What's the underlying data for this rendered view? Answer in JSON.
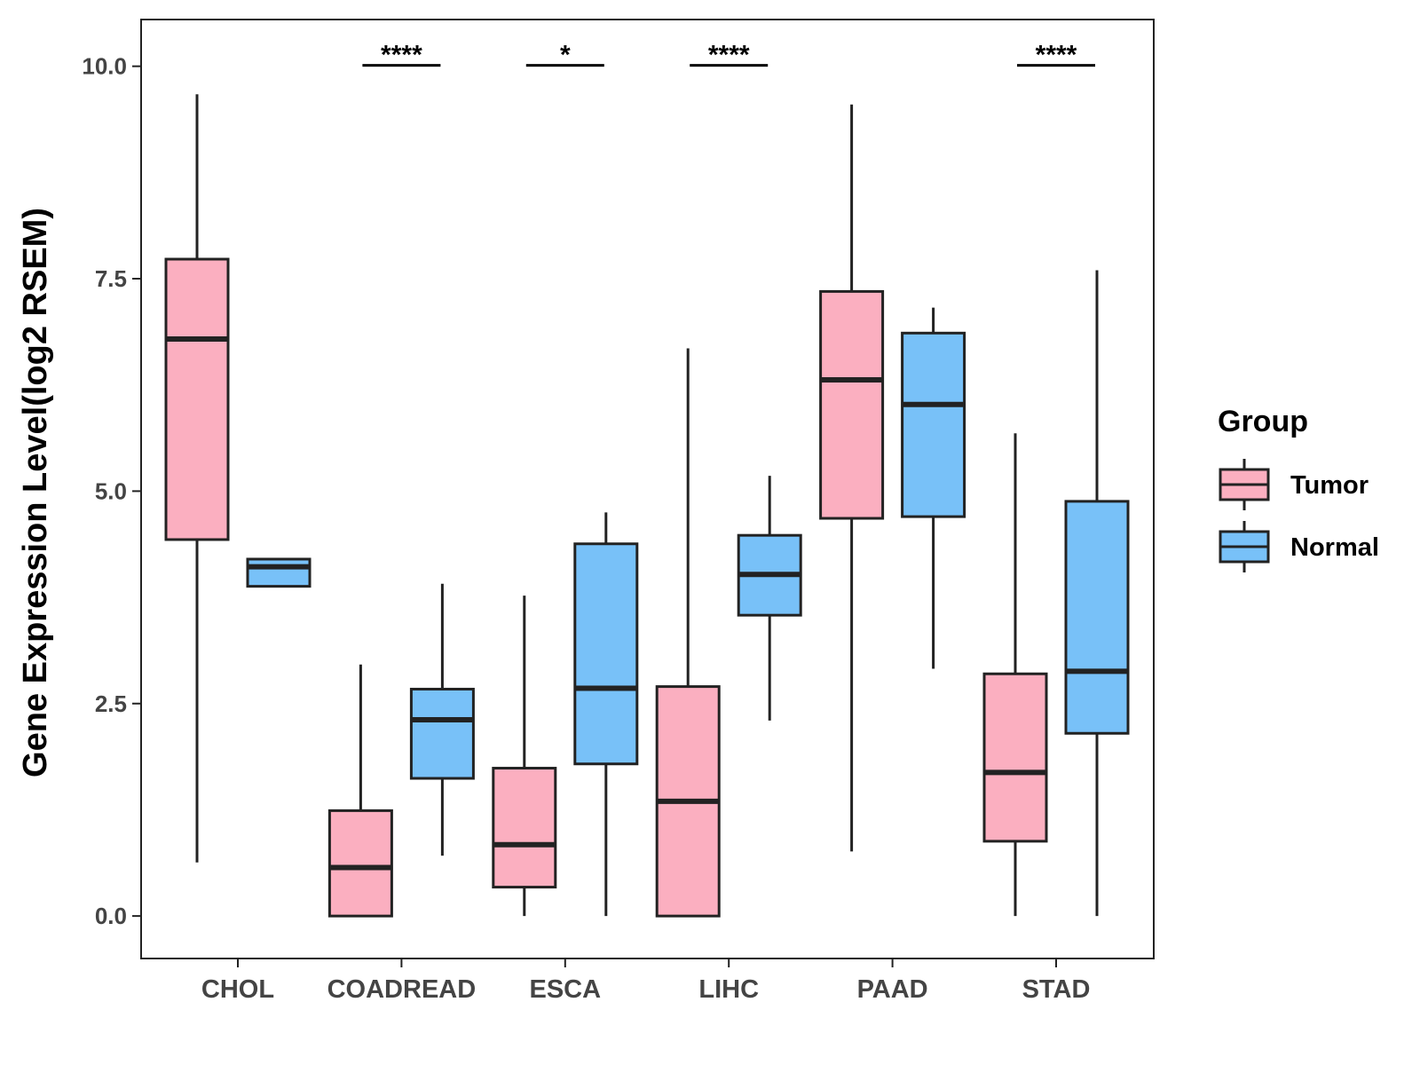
{
  "chart_data": {
    "type": "boxplot",
    "ylabel": "Gene Expression Level(log2 RSEM)",
    "xlabel": "",
    "ylim": [
      -0.5,
      10.55
    ],
    "yticks": [
      0.0,
      2.5,
      5.0,
      7.5,
      10.0
    ],
    "ytick_labels": [
      "0.0",
      "2.5",
      "5.0",
      "7.5",
      "10.0"
    ],
    "categories": [
      "CHOL",
      "COADREAD",
      "ESCA",
      "LIHC",
      "PAAD",
      "STAD"
    ],
    "legend": {
      "title": "Group",
      "entries": [
        {
          "name": "Tumor",
          "color": "#fbafc0"
        },
        {
          "name": "Normal",
          "color": "#78c1f8"
        }
      ]
    },
    "series": [
      {
        "name": "Tumor",
        "color": "#fbafc0",
        "boxes": [
          {
            "category": "CHOL",
            "whisker_low": 0.63,
            "q1": 4.43,
            "median": 6.79,
            "q3": 7.73,
            "whisker_high": 9.67
          },
          {
            "category": "COADREAD",
            "whisker_low": 0.0,
            "q1": 0.0,
            "median": 0.57,
            "q3": 1.24,
            "whisker_high": 2.96
          },
          {
            "category": "ESCA",
            "whisker_low": 0.0,
            "q1": 0.34,
            "median": 0.84,
            "q3": 1.74,
            "whisker_high": 3.77
          },
          {
            "category": "LIHC",
            "whisker_low": 0.0,
            "q1": 0.0,
            "median": 1.35,
            "q3": 2.7,
            "whisker_high": 6.68
          },
          {
            "category": "PAAD",
            "whisker_low": 0.76,
            "q1": 4.68,
            "median": 6.31,
            "q3": 7.35,
            "whisker_high": 9.55
          },
          {
            "category": "STAD",
            "whisker_low": 0.0,
            "q1": 0.88,
            "median": 1.69,
            "q3": 2.85,
            "whisker_high": 5.68
          }
        ]
      },
      {
        "name": "Normal",
        "color": "#78c1f8",
        "boxes": [
          {
            "category": "CHOL",
            "whisker_low": 3.88,
            "q1": 3.88,
            "median": 4.11,
            "q3": 4.2,
            "whisker_high": 4.2
          },
          {
            "category": "COADREAD",
            "whisker_low": 0.71,
            "q1": 1.62,
            "median": 2.31,
            "q3": 2.67,
            "whisker_high": 3.91
          },
          {
            "category": "ESCA",
            "whisker_low": 0.0,
            "q1": 1.79,
            "median": 2.68,
            "q3": 4.38,
            "whisker_high": 4.75
          },
          {
            "category": "LIHC",
            "whisker_low": 2.3,
            "q1": 3.54,
            "median": 4.02,
            "q3": 4.48,
            "whisker_high": 5.18
          },
          {
            "category": "PAAD",
            "whisker_low": 2.91,
            "q1": 4.7,
            "median": 6.02,
            "q3": 6.86,
            "whisker_high": 7.16
          },
          {
            "category": "STAD",
            "whisker_low": 0.0,
            "q1": 2.15,
            "median": 2.88,
            "q3": 4.88,
            "whisker_high": 7.6
          }
        ]
      }
    ],
    "significance": [
      {
        "category": "COADREAD",
        "label": "****"
      },
      {
        "category": "ESCA",
        "label": "*"
      },
      {
        "category": "LIHC",
        "label": "****"
      },
      {
        "category": "STAD",
        "label": "****"
      }
    ]
  }
}
